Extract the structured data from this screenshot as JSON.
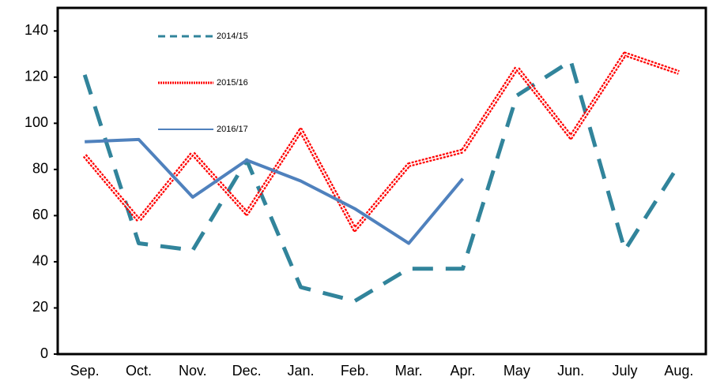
{
  "chart_data": {
    "type": "line",
    "categories": [
      "Sep.",
      "Oct.",
      "Nov.",
      "Dec.",
      "Jan.",
      "Feb.",
      "Mar.",
      "Apr.",
      "May",
      "Jun.",
      "July",
      "Aug."
    ],
    "series": [
      {
        "name": "2014/15",
        "color": "#31849b",
        "style": "dashed",
        "values": [
          121,
          48,
          45,
          84,
          29,
          23,
          37,
          37,
          112,
          127,
          45,
          82
        ]
      },
      {
        "name": "2015/16",
        "color": "#ff0000",
        "style": "double-dotted",
        "values": [
          86,
          58,
          87,
          61,
          97,
          54,
          82,
          88,
          124,
          94,
          130,
          122
        ]
      },
      {
        "name": "2016/17",
        "color": "#4f81bd",
        "style": "solid",
        "values": [
          92,
          93,
          68,
          84,
          75,
          63,
          48,
          76,
          null,
          null,
          null,
          null
        ]
      }
    ],
    "ylim": [
      0,
      150
    ],
    "yticks": [
      0,
      20,
      40,
      60,
      80,
      100,
      120,
      140
    ],
    "legend": "top-left"
  }
}
